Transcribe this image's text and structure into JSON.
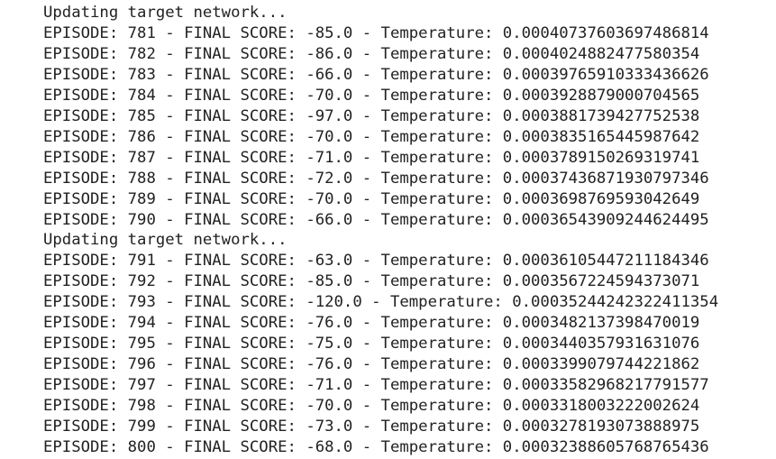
{
  "lines": [
    "Updating target network...",
    "EPISODE: 781 - FINAL SCORE: -85.0 - Temperature: 0.00040737603697486814",
    "EPISODE: 782 - FINAL SCORE: -86.0 - Temperature: 0.0004024882477580354",
    "EPISODE: 783 - FINAL SCORE: -66.0 - Temperature: 0.00039765910333436626",
    "EPISODE: 784 - FINAL SCORE: -70.0 - Temperature: 0.0003928879000704565",
    "EPISODE: 785 - FINAL SCORE: -97.0 - Temperature: 0.0003881739427752538",
    "EPISODE: 786 - FINAL SCORE: -70.0 - Temperature: 0.0003835165445987642",
    "EPISODE: 787 - FINAL SCORE: -71.0 - Temperature: 0.0003789150269319741",
    "EPISODE: 788 - FINAL SCORE: -72.0 - Temperature: 0.00037436871930797346",
    "EPISODE: 789 - FINAL SCORE: -70.0 - Temperature: 0.0003698769593042649",
    "EPISODE: 790 - FINAL SCORE: -66.0 - Temperature: 0.00036543909244624495",
    "Updating target network...",
    "EPISODE: 791 - FINAL SCORE: -63.0 - Temperature: 0.00036105447211184346",
    "EPISODE: 792 - FINAL SCORE: -85.0 - Temperature: 0.0003567224594373071",
    "EPISODE: 793 - FINAL SCORE: -120.0 - Temperature: 0.00035244242322411354",
    "EPISODE: 794 - FINAL SCORE: -76.0 - Temperature: 0.0003482137398470019",
    "EPISODE: 795 - FINAL SCORE: -75.0 - Temperature: 0.0003440357931631076",
    "EPISODE: 796 - FINAL SCORE: -76.0 - Temperature: 0.0003399079744221862",
    "EPISODE: 797 - FINAL SCORE: -71.0 - Temperature: 0.00033582968217791577",
    "EPISODE: 798 - FINAL SCORE: -70.0 - Temperature: 0.0003318003222002624",
    "EPISODE: 799 - FINAL SCORE: -73.0 - Temperature: 0.0003278193073888975",
    "EPISODE: 800 - FINAL SCORE: -68.0 - Temperature: 0.00032388605768765436"
  ]
}
